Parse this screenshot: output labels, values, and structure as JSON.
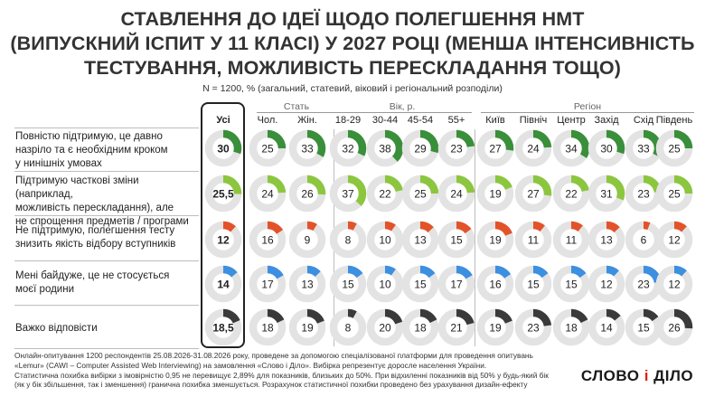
{
  "title_lines": [
    "Ставлення до ідеї щодо полегшення НМТ",
    "(випускний іспит у 11 класі) у 2027 році (менша інтенсивність",
    "тестування, можливість перескладання тощо)"
  ],
  "subtitle": "N = 1200, % (загальний, статевий, віковий і регіональний розподіли)",
  "groups": {
    "sex": "Стать",
    "age": "Вік, р.",
    "region": "Регіон"
  },
  "footer_lines": [
    "Онлайн-опитування 1200 респондентів 25.08.2026-31.08.2026 року, проведене за допомогою спеціалізованої платформи для проведення опитувань",
    "«Lemur» (CAWI – Computer Assisted Web Interviewing) на замовлення «Слово і Діло». Вибірка репрезентує доросле населення України.",
    "Статистична похибка вибірки з імовірністю 0,95 не перевищує 2,89% для показників, близьких до 50%. При відхиленні показників від 50% у будь-який бік",
    "(як у бік збільшення, так і зменшення) гранична похибка зменшується. Розрахунок статистичної похибки проведено без урахування дизайн-ефекту"
  ],
  "logo": {
    "left": "СЛОВО",
    "amp": "і",
    "right": "ДІЛО"
  },
  "colors": {
    "full_support": "#3a8f3a",
    "partial_support": "#8cc63f",
    "not_support": "#e2532a",
    "indifferent": "#3d8fe0",
    "hard_to_say": "#3a3a3a",
    "track": "#e3e3e3"
  },
  "chart_data": {
    "type": "table",
    "columns": [
      "Усі",
      "Чол.",
      "Жін.",
      "18-29",
      "30-44",
      "45-54",
      "55+",
      "Київ",
      "Північ",
      "Центр",
      "Захід",
      "Схід",
      "Південь"
    ],
    "rows": [
      {
        "label": "Повністю підтримую, це давно назріло та є необхідним кроком у нинішніх умовах",
        "label_lines": [
          "Повністю підтримую, це давно",
          "назріло та є необхідним кроком",
          "у нинішніх умовах"
        ],
        "color_key": "full_support",
        "display": [
          "30",
          "25",
          "33",
          "32",
          "38",
          "29",
          "23",
          "27",
          "24",
          "34",
          "30",
          "33",
          "25"
        ],
        "values": [
          30,
          25,
          33,
          32,
          38,
          29,
          23,
          27,
          24,
          34,
          30,
          33,
          25
        ]
      },
      {
        "label": "Підтримую часткові зміни (наприклад, можливість перескладання), але не спрощення предметів / програми",
        "label_lines": [
          "Підтримую часткові зміни (наприклад,",
          "можливість перескладання), але",
          "не спрощення предметів / програми"
        ],
        "color_key": "partial_support",
        "display": [
          "25,5",
          "24",
          "26",
          "37",
          "22",
          "25",
          "24",
          "19",
          "27",
          "22",
          "31",
          "23",
          "25"
        ],
        "values": [
          25.5,
          24,
          26,
          37,
          22,
          25,
          24,
          19,
          27,
          22,
          31,
          23,
          25
        ]
      },
      {
        "label": "Не підтримую, полегшення тесту знизить якість відбору вступників",
        "label_lines": [
          "Не підтримую, полегшення тесту",
          "знизить якість відбору вступників"
        ],
        "color_key": "not_support",
        "display": [
          "12",
          "16",
          "9",
          "8",
          "10",
          "13",
          "15",
          "19",
          "11",
          "11",
          "13",
          "6",
          "12"
        ],
        "values": [
          12,
          16,
          9,
          8,
          10,
          13,
          15,
          19,
          11,
          11,
          13,
          6,
          12
        ]
      },
      {
        "label": "Мені байдуже, це не стосується моєї родини",
        "label_lines": [
          "Мені байдуже, це не стосується",
          "моєї родини"
        ],
        "color_key": "indifferent",
        "display": [
          "14",
          "17",
          "13",
          "15",
          "10",
          "15",
          "17",
          "16",
          "15",
          "15",
          "12",
          "23",
          "12"
        ],
        "values": [
          14,
          17,
          13,
          15,
          10,
          15,
          17,
          16,
          15,
          15,
          12,
          23,
          12
        ]
      },
      {
        "label": "Важко відповісти",
        "label_lines": [
          "Важко відповісти"
        ],
        "color_key": "hard_to_say",
        "display": [
          "18,5",
          "18",
          "19",
          "8",
          "20",
          "18",
          "21",
          "19",
          "23",
          "18",
          "14",
          "15",
          "26"
        ],
        "values": [
          18.5,
          18,
          19,
          8,
          20,
          18,
          21,
          19,
          23,
          18,
          14,
          15,
          26
        ]
      }
    ]
  }
}
